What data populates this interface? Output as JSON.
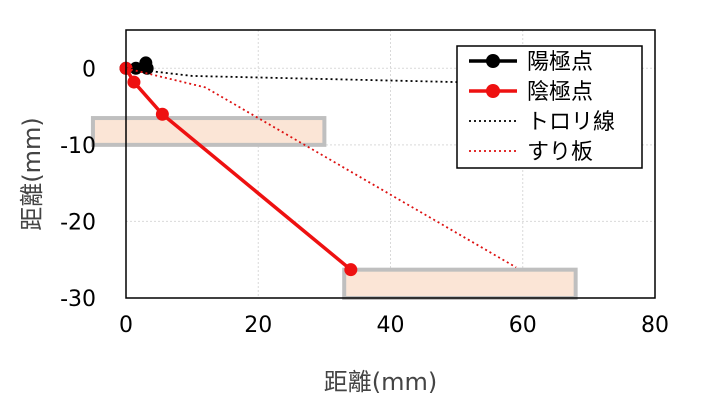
{
  "chart_data": {
    "type": "scatter",
    "title": "",
    "xlabel": "距離(mm)",
    "ylabel": "距離(mm)",
    "xlim": [
      0,
      80
    ],
    "ylim": [
      -30,
      5
    ],
    "x_ticks": [
      "0",
      "20",
      "40",
      "60",
      "80"
    ],
    "y_ticks": [
      "0",
      "-10",
      "-20",
      "-30"
    ],
    "grid": true,
    "legend_position": "top-right",
    "series": [
      {
        "name": "陽極点",
        "color": "#000000",
        "style": "solid-markers",
        "points": [
          [
            0,
            0
          ],
          [
            1.5,
            0
          ],
          [
            3,
            0.7
          ],
          [
            3.2,
            0
          ]
        ]
      },
      {
        "name": "陰極点",
        "color": "#ee1111",
        "style": "solid-markers",
        "points": [
          [
            0,
            0
          ],
          [
            1.2,
            -1.8
          ],
          [
            5.5,
            -6
          ],
          [
            34,
            -26.3
          ]
        ]
      },
      {
        "name": "トロリ線",
        "color": "#000000",
        "style": "dotted",
        "points": [
          [
            0,
            0
          ],
          [
            10,
            -1
          ],
          [
            50,
            -1.8
          ]
        ]
      },
      {
        "name": "すり板",
        "color": "#dd1111",
        "style": "dotted",
        "points": [
          [
            0,
            0
          ],
          [
            12,
            -2.5
          ],
          [
            59,
            -26
          ]
        ]
      }
    ],
    "rectangles": [
      {
        "x0": -5,
        "x1": 30,
        "y0": -10,
        "y1": -6.5,
        "fill": "#fbe5d6",
        "stroke": "#bfbfbf"
      },
      {
        "x0": 33,
        "x1": 68,
        "y0": -30,
        "y1": -26.3,
        "fill": "#fbe5d6",
        "stroke": "#bfbfbf"
      }
    ]
  }
}
